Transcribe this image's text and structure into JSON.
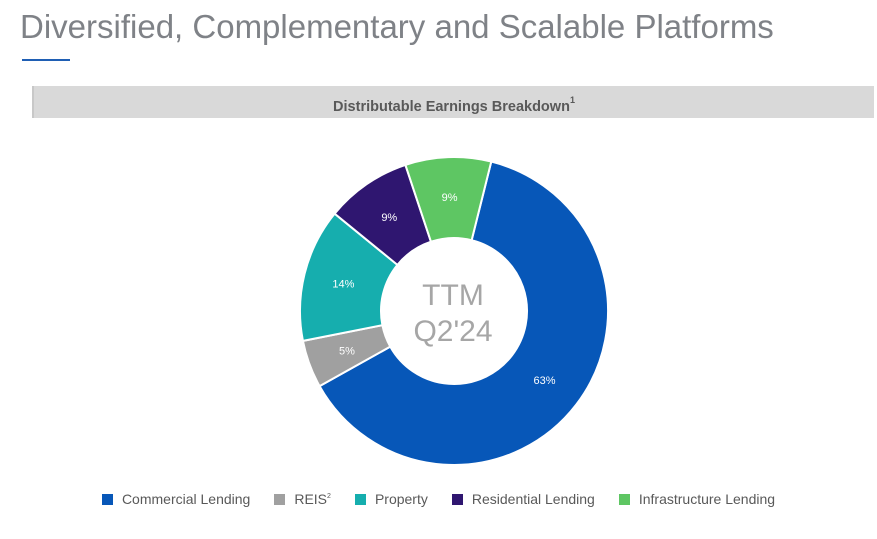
{
  "page": {
    "title": "Diversified, Complementary and Scalable Platforms"
  },
  "chart_data": {
    "type": "donut",
    "title": "Distributable Earnings Breakdown",
    "title_footnote": "1",
    "center_label": [
      "TTM",
      "Q2'24"
    ],
    "categories": [
      "Commercial Lending",
      "REIS",
      "Property",
      "Residential Lending",
      "Infrastructure Lending"
    ],
    "category_footnotes": [
      "",
      "2",
      "",
      "",
      ""
    ],
    "values": [
      63,
      5,
      14,
      9,
      9
    ],
    "data_labels": [
      "63%",
      "5%",
      "14%",
      "9%",
      "9%"
    ],
    "colors": [
      "#0757b8",
      "#a0a0a0",
      "#16aeae",
      "#2f1670",
      "#5ec663"
    ],
    "legend_position": "bottom"
  }
}
